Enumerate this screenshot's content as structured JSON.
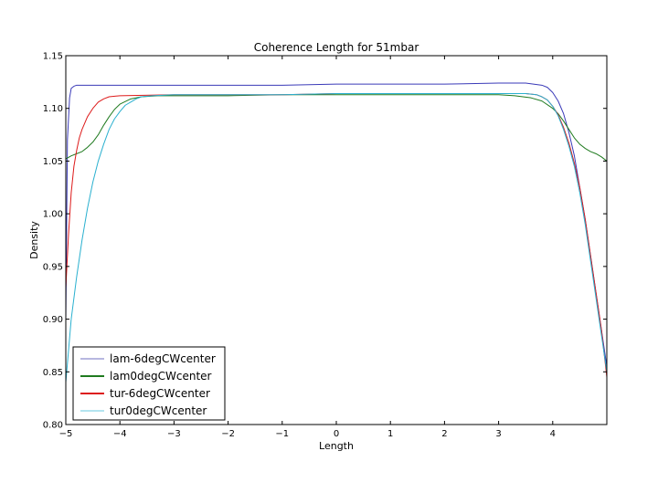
{
  "chart_data": {
    "type": "line",
    "title": "Coherence Length for 51mbar",
    "xlabel": "Length",
    "ylabel": "Density",
    "xlim": [
      -5,
      5
    ],
    "ylim": [
      0.8,
      1.15
    ],
    "xticks": [
      -5,
      -4,
      -3,
      -2,
      -1,
      0,
      1,
      2,
      3,
      4
    ],
    "xtick_labels": [
      "−5",
      "−4",
      "−3",
      "−2",
      "−1",
      "0",
      "1",
      "2",
      "3",
      "4"
    ],
    "yticks": [
      0.8,
      0.85,
      0.9,
      0.95,
      1.0,
      1.05,
      1.1,
      1.15
    ],
    "ytick_labels": [
      "0.80",
      "0.85",
      "0.90",
      "0.95",
      "1.00",
      "1.05",
      "1.10",
      "1.15"
    ],
    "grid": false,
    "legend_position": "lower-left",
    "series": [
      {
        "name": "lam-6degCWcenter",
        "color": "#3a3ab8",
        "legend_color": "#b8b8e0",
        "x": [
          -5.0,
          -4.97,
          -4.93,
          -4.9,
          -4.85,
          -4.8,
          -4.5,
          -4.0,
          -3.0,
          -2.0,
          -1.0,
          0.0,
          1.0,
          2.0,
          3.0,
          3.5,
          3.8,
          3.9,
          4.0,
          4.1,
          4.2,
          4.3,
          4.4,
          4.5,
          4.6,
          4.7,
          4.8,
          4.9,
          5.0
        ],
        "values": [
          0.9,
          1.07,
          1.11,
          1.119,
          1.121,
          1.122,
          1.122,
          1.122,
          1.122,
          1.122,
          1.122,
          1.123,
          1.123,
          1.123,
          1.124,
          1.124,
          1.122,
          1.12,
          1.115,
          1.107,
          1.095,
          1.077,
          1.055,
          1.025,
          0.995,
          0.96,
          0.925,
          0.89,
          0.855
        ]
      },
      {
        "name": "lam0degCWcenter",
        "color": "#1f7a1f",
        "legend_color": "#1f7a1f",
        "x": [
          -5.0,
          -4.9,
          -4.8,
          -4.7,
          -4.6,
          -4.5,
          -4.4,
          -4.3,
          -4.2,
          -4.1,
          -4.0,
          -3.8,
          -3.6,
          -3.3,
          -3.0,
          -2.0,
          -1.0,
          0.0,
          1.0,
          2.0,
          3.0,
          3.3,
          3.6,
          3.8,
          4.0,
          4.1,
          4.2,
          4.3,
          4.4,
          4.5,
          4.6,
          4.7,
          4.8,
          4.9,
          5.0
        ],
        "values": [
          1.052,
          1.055,
          1.057,
          1.059,
          1.063,
          1.068,
          1.075,
          1.084,
          1.092,
          1.099,
          1.104,
          1.109,
          1.111,
          1.112,
          1.112,
          1.112,
          1.113,
          1.113,
          1.113,
          1.113,
          1.113,
          1.112,
          1.11,
          1.107,
          1.1,
          1.095,
          1.088,
          1.08,
          1.072,
          1.066,
          1.062,
          1.059,
          1.057,
          1.054,
          1.05
        ]
      },
      {
        "name": "tur-6degCWcenter",
        "color": "#dd1a1a",
        "legend_color": "#dd1a1a",
        "x": [
          -5.0,
          -4.95,
          -4.9,
          -4.85,
          -4.8,
          -4.75,
          -4.7,
          -4.6,
          -4.5,
          -4.4,
          -4.3,
          -4.2,
          -4.0,
          -3.0,
          -2.0,
          -1.0,
          0.0,
          1.0,
          2.0,
          3.0,
          3.5,
          3.7,
          3.8,
          3.9,
          4.0,
          4.1,
          4.2,
          4.3,
          4.4,
          4.5,
          4.6,
          4.7,
          4.8,
          4.9,
          5.0
        ],
        "values": [
          0.93,
          0.98,
          1.02,
          1.045,
          1.06,
          1.072,
          1.08,
          1.092,
          1.1,
          1.106,
          1.109,
          1.111,
          1.112,
          1.113,
          1.113,
          1.113,
          1.114,
          1.114,
          1.114,
          1.114,
          1.114,
          1.113,
          1.111,
          1.108,
          1.102,
          1.094,
          1.082,
          1.067,
          1.048,
          1.025,
          0.995,
          0.96,
          0.925,
          0.89,
          0.845
        ]
      },
      {
        "name": "tur0degCWcenter",
        "color": "#2ab0cf",
        "legend_color": "#b3e4f0",
        "x": [
          -5.0,
          -4.95,
          -4.9,
          -4.8,
          -4.7,
          -4.6,
          -4.5,
          -4.4,
          -4.3,
          -4.2,
          -4.1,
          -4.0,
          -3.9,
          -3.8,
          -3.7,
          -3.6,
          -3.4,
          -3.0,
          -2.0,
          -1.0,
          0.0,
          1.0,
          2.0,
          3.0,
          3.5,
          3.7,
          3.8,
          3.9,
          4.0,
          4.1,
          4.2,
          4.3,
          4.4,
          4.5,
          4.6,
          4.7,
          4.8,
          4.9,
          5.0
        ],
        "values": [
          0.84,
          0.87,
          0.9,
          0.94,
          0.975,
          1.005,
          1.03,
          1.05,
          1.066,
          1.08,
          1.09,
          1.097,
          1.103,
          1.106,
          1.109,
          1.111,
          1.112,
          1.113,
          1.113,
          1.113,
          1.114,
          1.114,
          1.114,
          1.114,
          1.114,
          1.113,
          1.111,
          1.108,
          1.102,
          1.093,
          1.08,
          1.064,
          1.045,
          1.02,
          0.99,
          0.955,
          0.92,
          0.885,
          0.85
        ]
      }
    ]
  }
}
